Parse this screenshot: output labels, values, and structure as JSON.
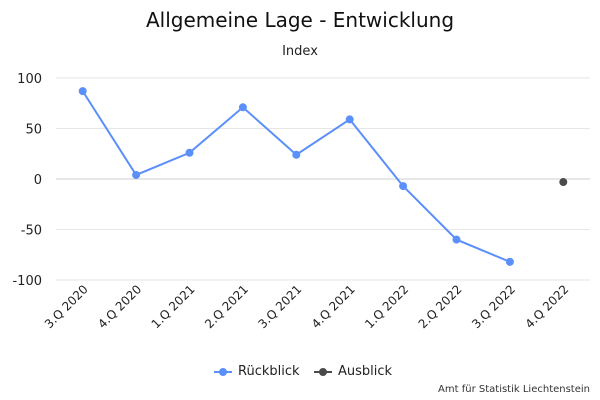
{
  "chart_data": {
    "type": "line",
    "title": "Allgemeine Lage - Entwicklung",
    "subtitle": "Index",
    "xlabel": "",
    "ylabel": "",
    "categories": [
      "3.Q 2020",
      "4.Q 2020",
      "1.Q 2021",
      "2.Q 2021",
      "3.Q 2021",
      "4.Q 2021",
      "1.Q 2022",
      "2.Q 2022",
      "3.Q 2022",
      "4.Q 2022"
    ],
    "ylim": [
      -100,
      100
    ],
    "yticks": [
      100,
      50,
      0,
      -50,
      -100
    ],
    "grid": true,
    "legend": "bottom",
    "series": [
      {
        "name": "Rückblick",
        "color": "#5b8ff9",
        "values": [
          87,
          4,
          26,
          71,
          24,
          59,
          -7,
          -60,
          -82,
          null
        ]
      },
      {
        "name": "Ausblick",
        "color": "#4a4a4a",
        "values": [
          null,
          null,
          null,
          null,
          null,
          null,
          null,
          null,
          null,
          -3
        ]
      }
    ],
    "credit": "Amt für Statistik Liechtenstein"
  }
}
